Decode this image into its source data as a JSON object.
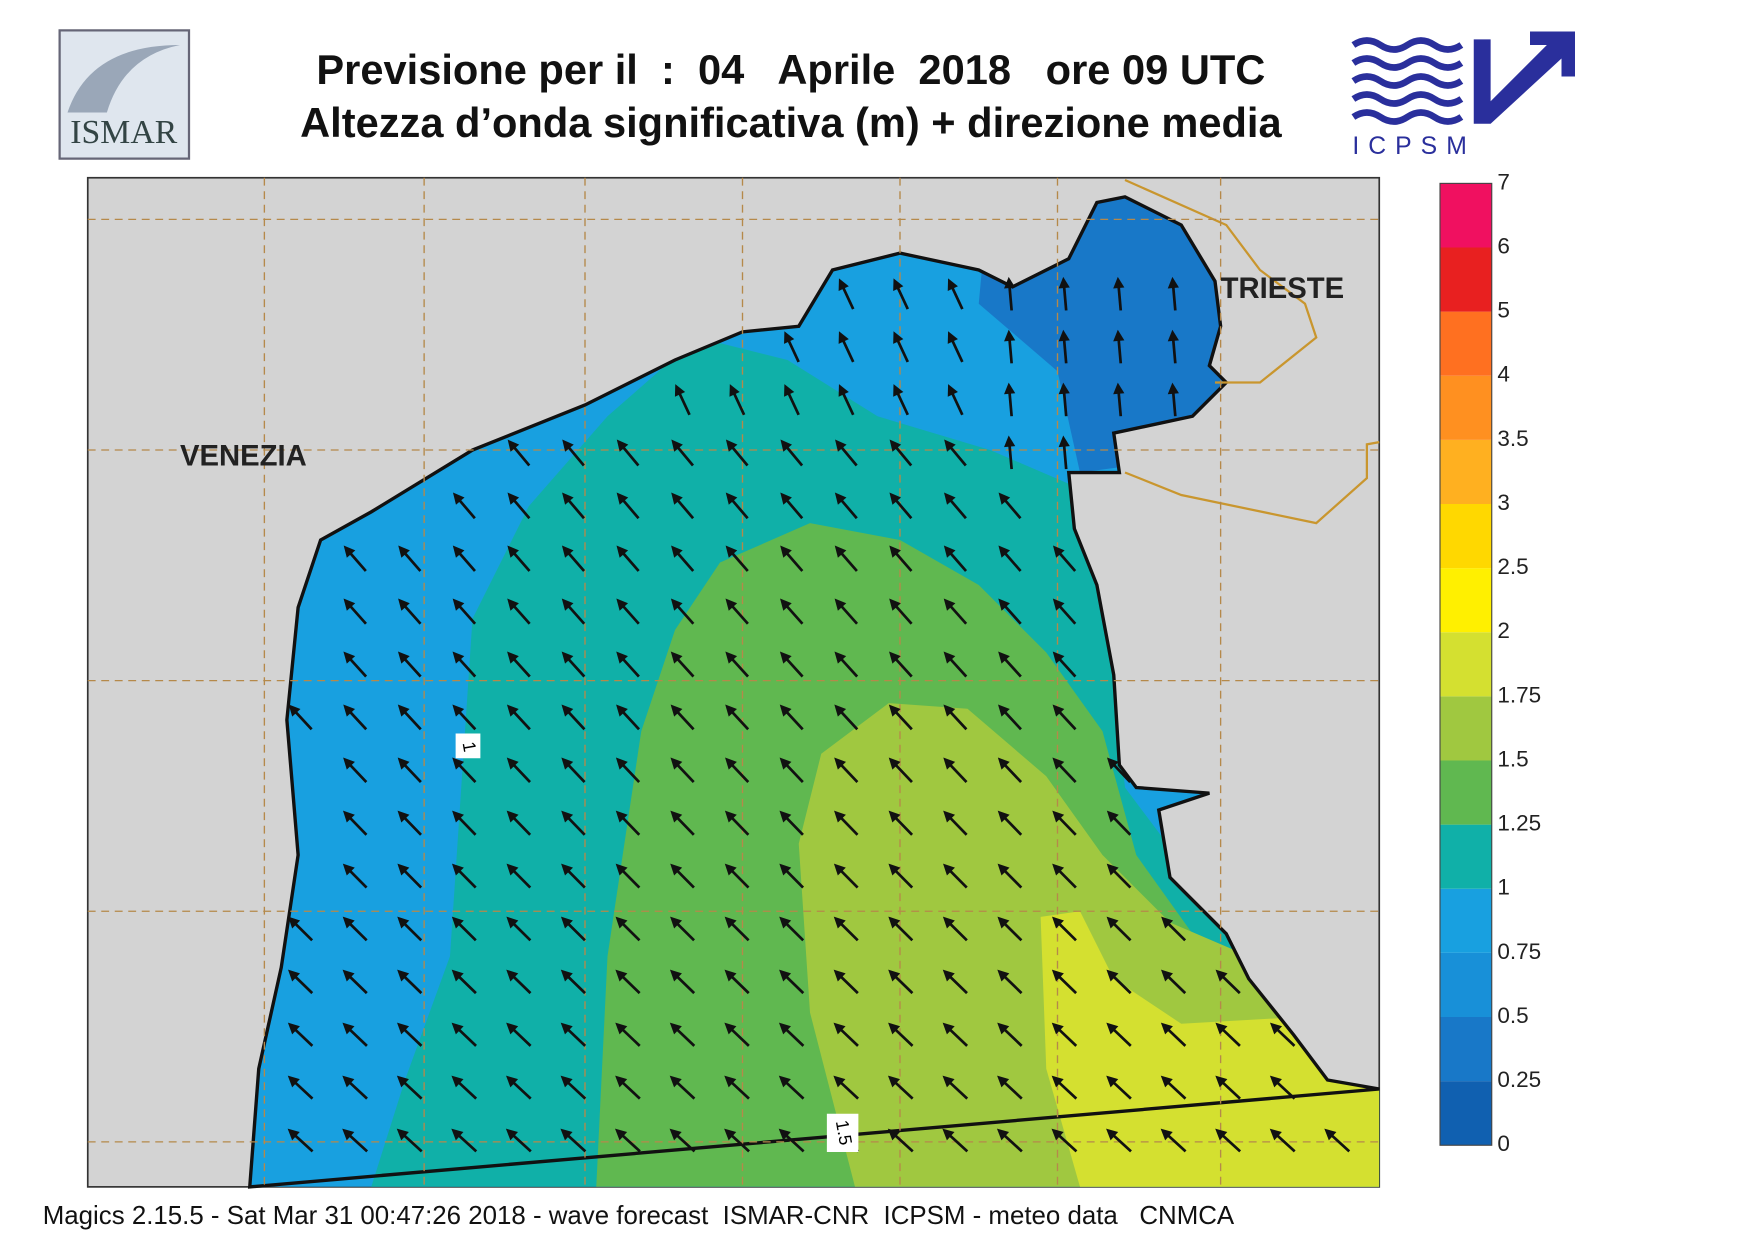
{
  "header": {
    "title_line1": "Previsione per il  :  04   Aprile  2018   ore 09 UTC",
    "title_line2": "Altezza d’onda significativa (m) + direzione media"
  },
  "logos": {
    "left": "ISMAR",
    "right": "ICPSM"
  },
  "map": {
    "city_labels": [
      "VENEZIA",
      "TRIESTE"
    ],
    "contour_labels": [
      "1",
      "1.5"
    ]
  },
  "legend": {
    "levels": [
      0,
      0.25,
      0.5,
      0.75,
      1,
      1.25,
      1.5,
      1.75,
      2,
      2.5,
      3,
      3.5,
      4,
      5,
      6,
      7
    ],
    "colors": [
      "#1060b0",
      "#1878c8",
      "#1890d8",
      "#18a0e0",
      "#10b0a8",
      "#60b850",
      "#a0c840",
      "#d4e030",
      "#fff000",
      "#ffd800",
      "#ffb020",
      "#ff9020",
      "#ff7020",
      "#e82020",
      "#f01060"
    ]
  },
  "footer": "Magics 2.15.5 - Sat Mar 31 00:47:26 2018 - wave forecast  ISMAR-CNR  ICPSM - meteo data   CNMCA"
}
